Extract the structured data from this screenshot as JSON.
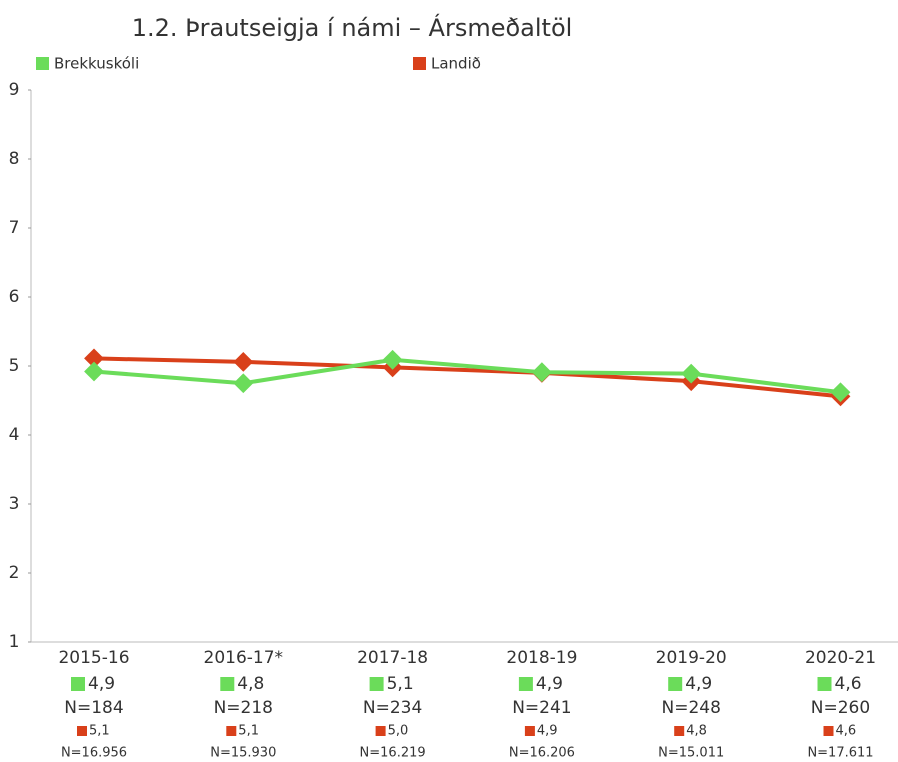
{
  "chart_data": {
    "type": "line",
    "title": "1.2. Þrautseigja í námi – Ársmeðaltöl",
    "categories": [
      "2015-16",
      "2016-17*",
      "2017-18",
      "2018-19",
      "2019-20",
      "2020-21"
    ],
    "series": [
      {
        "name": "Brekkuskóli",
        "color": "#6bdc5a",
        "values": [
          4.92,
          4.75,
          5.09,
          4.91,
          4.89,
          4.62
        ],
        "value_labels": [
          "4,9",
          "4,8",
          "5,1",
          "4,9",
          "4,9",
          "4,6"
        ],
        "count_labels": [
          "N=184",
          "N=218",
          "N=234",
          "N=241",
          "N=248",
          "N=260"
        ]
      },
      {
        "name": "Landið",
        "color": "#d9401a",
        "values": [
          5.11,
          5.06,
          4.98,
          4.9,
          4.78,
          4.56
        ],
        "value_labels": [
          "5,1",
          "5,1",
          "5,0",
          "4,9",
          "4,8",
          "4,6"
        ],
        "count_labels": [
          "N=16.956",
          "N=15.930",
          "N=16.219",
          "N=16.206",
          "N=15.011",
          "N=17.611"
        ]
      }
    ],
    "ylim": [
      1,
      9
    ],
    "yticks": [
      1,
      2,
      3,
      4,
      5,
      6,
      7,
      8,
      9
    ]
  }
}
